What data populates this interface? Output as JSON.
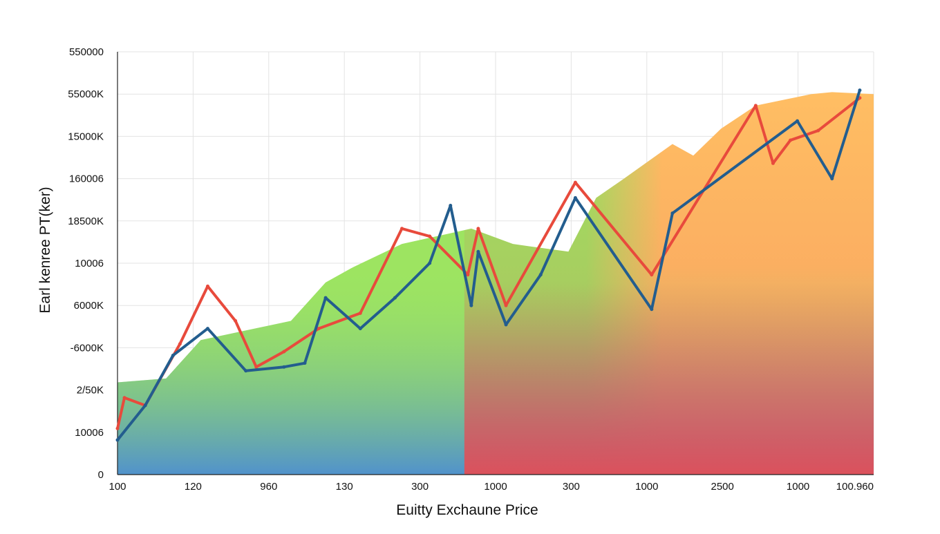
{
  "chart_data": {
    "type": "line",
    "xlabel": "Euitty Exchaune Price",
    "ylabel": "Earl kenree PT(ker)",
    "grid": true,
    "legend": "none",
    "x_tick_labels": [
      "100",
      "120",
      "960",
      "130",
      "300",
      "1000",
      "300",
      "1000",
      "2500",
      "1000",
      "100.960"
    ],
    "y_tick_labels": [
      "0",
      "10006",
      "2/50K",
      "-6000K",
      "6000K",
      "10006",
      "18500K",
      "160006",
      "15000K",
      "55000K",
      "550000"
    ],
    "colors": {
      "red_series": "#e84a3c",
      "blue_series": "#235d8e",
      "area_left": "#4d8ed1",
      "area_mid": "#9de461",
      "area_right": "#ffbe63",
      "area_bottom_right": "#e34e56"
    },
    "series": [
      {
        "color": "red",
        "points": [
          [
            0.0,
            1.2
          ],
          [
            0.1,
            2.0
          ],
          [
            0.4,
            1.8
          ],
          [
            0.9,
            3.4
          ],
          [
            1.3,
            4.9
          ],
          [
            1.7,
            4.0
          ],
          [
            2.0,
            2.8
          ],
          [
            2.4,
            3.2
          ],
          [
            2.9,
            3.8
          ],
          [
            3.5,
            4.2
          ],
          [
            4.1,
            6.4
          ],
          [
            4.5,
            6.2
          ],
          [
            5.05,
            5.2
          ],
          [
            5.2,
            6.4
          ],
          [
            5.6,
            4.4
          ],
          [
            6.6,
            7.6
          ],
          [
            7.7,
            5.2
          ],
          [
            9.2,
            9.6
          ],
          [
            9.45,
            8.1
          ],
          [
            9.7,
            8.7
          ],
          [
            10.1,
            8.95
          ],
          [
            10.7,
            9.8
          ]
        ]
      },
      {
        "color": "blue",
        "points": [
          [
            0.0,
            0.9
          ],
          [
            0.4,
            1.8
          ],
          [
            0.8,
            3.1
          ],
          [
            1.3,
            3.8
          ],
          [
            1.85,
            2.7
          ],
          [
            2.4,
            2.8
          ],
          [
            2.7,
            2.9
          ],
          [
            3.0,
            4.6
          ],
          [
            3.5,
            3.8
          ],
          [
            4.0,
            4.6
          ],
          [
            4.5,
            5.5
          ],
          [
            4.8,
            7.0
          ],
          [
            5.1,
            4.4
          ],
          [
            5.2,
            5.8
          ],
          [
            5.6,
            3.9
          ],
          [
            6.1,
            5.2
          ],
          [
            6.6,
            7.2
          ],
          [
            7.7,
            4.3
          ],
          [
            8.0,
            6.8
          ],
          [
            9.8,
            9.2
          ],
          [
            10.3,
            7.7
          ],
          [
            10.7,
            10.0
          ]
        ]
      }
    ],
    "area": {
      "points": [
        [
          0.0,
          2.4
        ],
        [
          0.7,
          2.5
        ],
        [
          1.2,
          3.5
        ],
        [
          2.5,
          4.0
        ],
        [
          3.0,
          5.0
        ],
        [
          3.4,
          5.4
        ],
        [
          4.1,
          6.0
        ],
        [
          4.6,
          6.2
        ],
        [
          5.1,
          6.4
        ],
        [
          5.7,
          6.0
        ],
        [
          6.5,
          5.8
        ],
        [
          6.9,
          7.2
        ],
        [
          7.3,
          7.7
        ],
        [
          8.0,
          8.6
        ],
        [
          8.3,
          8.3
        ],
        [
          8.7,
          9.0
        ],
        [
          9.2,
          9.6
        ],
        [
          10.0,
          9.9
        ],
        [
          10.3,
          9.95
        ],
        [
          10.9,
          9.9
        ]
      ]
    },
    "xlim": [
      0,
      10.9
    ],
    "ylim": [
      0,
      11
    ]
  }
}
